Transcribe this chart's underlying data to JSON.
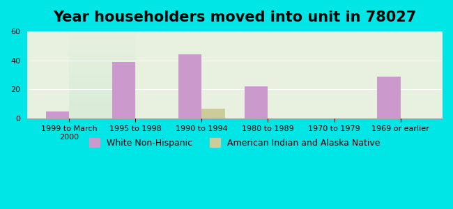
{
  "title": "Year householders moved into unit in 78027",
  "categories": [
    "1999 to March\n2000",
    "1995 to 1998",
    "1990 to 1994",
    "1980 to 1989",
    "1970 to 1979",
    "1969 or earlier"
  ],
  "white_non_hispanic": [
    5,
    39,
    44,
    22,
    0,
    29
  ],
  "american_indian": [
    0,
    0,
    7,
    0,
    0,
    0
  ],
  "white_color": "#cc99cc",
  "american_indian_color": "#cccc99",
  "background_outer": "#00e5e5",
  "background_inner_top": "#e8f0e0",
  "background_inner_bottom": "#d8ecd8",
  "ylim": [
    0,
    60
  ],
  "yticks": [
    0,
    20,
    40,
    60
  ],
  "bar_width": 0.35,
  "title_fontsize": 15,
  "legend_fontsize": 9,
  "tick_fontsize": 8
}
